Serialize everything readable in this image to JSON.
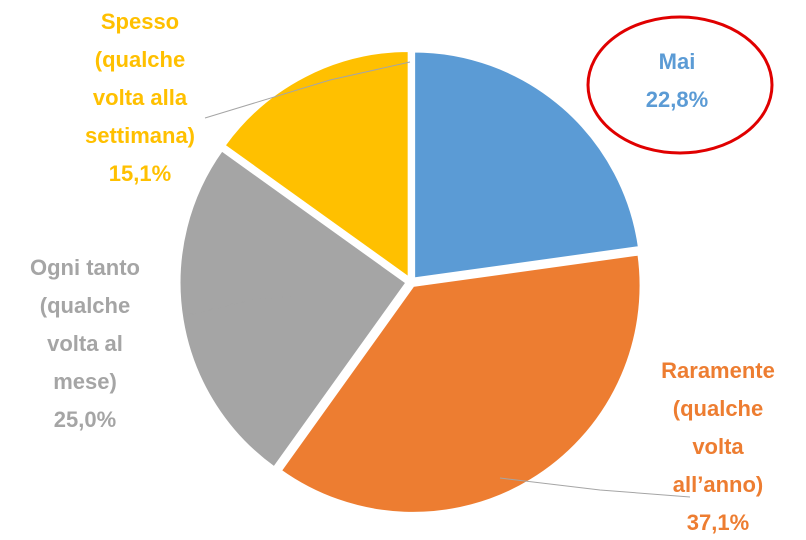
{
  "chart_data": {
    "type": "pie",
    "categories": [
      "Mai",
      "Raramente\n(qualche\nvolta\nall’anno)",
      "Ogni tanto\n(qualche\nvolta al\nmese)",
      "Spesso\n(qualche\nvolta alla\nsettimana)"
    ],
    "values": [
      22.8,
      37.1,
      25.0,
      15.1
    ],
    "value_labels": [
      "22,8%",
      "37,1%",
      "25,0%",
      "15,1%"
    ],
    "colors": [
      "#5b9bd5",
      "#ed7d31",
      "#a5a5a5",
      "#ffc000"
    ]
  }
}
